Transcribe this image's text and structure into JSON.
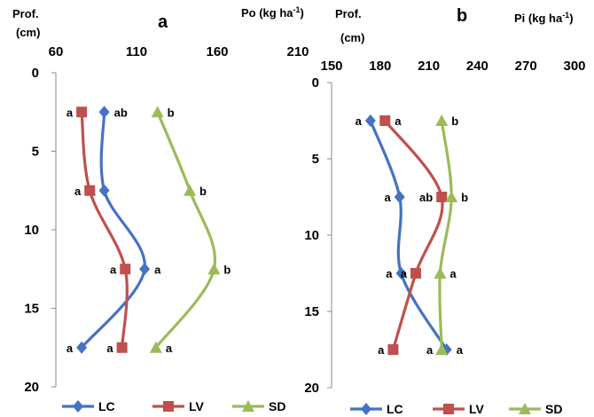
{
  "chart_data": [
    {
      "type": "line",
      "panel_label": "a",
      "y_label": [
        "Prof.",
        "(cm)"
      ],
      "x_label_main": "Po (kg ha",
      "x_label_sup": "-1",
      "x_label_end": ")",
      "x_ticks": [
        "60",
        "110",
        "160",
        "210"
      ],
      "y_ticks": [
        "0",
        "5",
        "10",
        "15",
        "20"
      ],
      "xlim": [
        60,
        210
      ],
      "ylim": [
        0,
        20
      ],
      "y_axis": "inverted",
      "x_axis_position": "top",
      "grid": false,
      "legend_position": "bottom",
      "series": [
        {
          "name": "LC",
          "color": "#4472c4",
          "marker": "diamond",
          "x": [
            90,
            90,
            115,
            76
          ],
          "y": [
            2.5,
            7.5,
            12.5,
            17.5
          ],
          "labels": [
            "ab",
            "a",
            "a",
            "a"
          ],
          "label_side": [
            "right",
            "left",
            "right",
            "left"
          ]
        },
        {
          "name": "LV",
          "color": "#c0504d",
          "marker": "square",
          "x": [
            76,
            81,
            103,
            101
          ],
          "y": [
            2.5,
            7.5,
            12.5,
            17.5
          ],
          "labels": [
            "a",
            "a",
            "a",
            "a"
          ],
          "label_side": [
            "left",
            "left",
            "left",
            "left"
          ]
        },
        {
          "name": "SD",
          "color": "#9bbb59",
          "marker": "triangle",
          "x": [
            123,
            143,
            158,
            122
          ],
          "y": [
            2.5,
            7.5,
            12.5,
            17.5
          ],
          "labels": [
            "b",
            "b",
            "b",
            "a"
          ],
          "label_side": [
            "right",
            "right",
            "right",
            "right"
          ]
        }
      ]
    },
    {
      "type": "line",
      "panel_label": "b",
      "y_label": [
        "Prof.",
        "(cm)"
      ],
      "x_label_main": "Pi (kg ha",
      "x_label_sup": "-1",
      "x_label_end": ")",
      "x_ticks": [
        "150",
        "180",
        "210",
        "240",
        "270",
        "300"
      ],
      "y_ticks": [
        "0",
        "5",
        "10",
        "15",
        "20"
      ],
      "xlim": [
        150,
        300
      ],
      "ylim": [
        0,
        20
      ],
      "y_axis": "inverted",
      "x_axis_position": "top",
      "grid": false,
      "legend_position": "bottom",
      "series": [
        {
          "name": "LC",
          "color": "#4472c4",
          "marker": "diamond",
          "x": [
            174,
            192,
            193,
            221
          ],
          "y": [
            2.5,
            7.5,
            12.5,
            17.5
          ],
          "labels": [
            "a",
            "a",
            "a",
            "a"
          ],
          "label_side": [
            "left",
            "left",
            "left",
            "right"
          ]
        },
        {
          "name": "LV",
          "color": "#c0504d",
          "marker": "square",
          "x": [
            183,
            218,
            202,
            188
          ],
          "y": [
            2.5,
            7.5,
            12.5,
            17.5
          ],
          "labels": [
            "a",
            "ab",
            "a",
            "a"
          ],
          "label_side": [
            "right",
            "left",
            "left",
            "left"
          ]
        },
        {
          "name": "SD",
          "color": "#9bbb59",
          "marker": "triangle",
          "x": [
            218,
            224,
            217,
            218
          ],
          "y": [
            2.5,
            7.5,
            12.5,
            17.5
          ],
          "labels": [
            "b",
            "b",
            "a",
            "a"
          ],
          "label_side": [
            "right",
            "right",
            "right",
            "left"
          ]
        }
      ]
    }
  ]
}
